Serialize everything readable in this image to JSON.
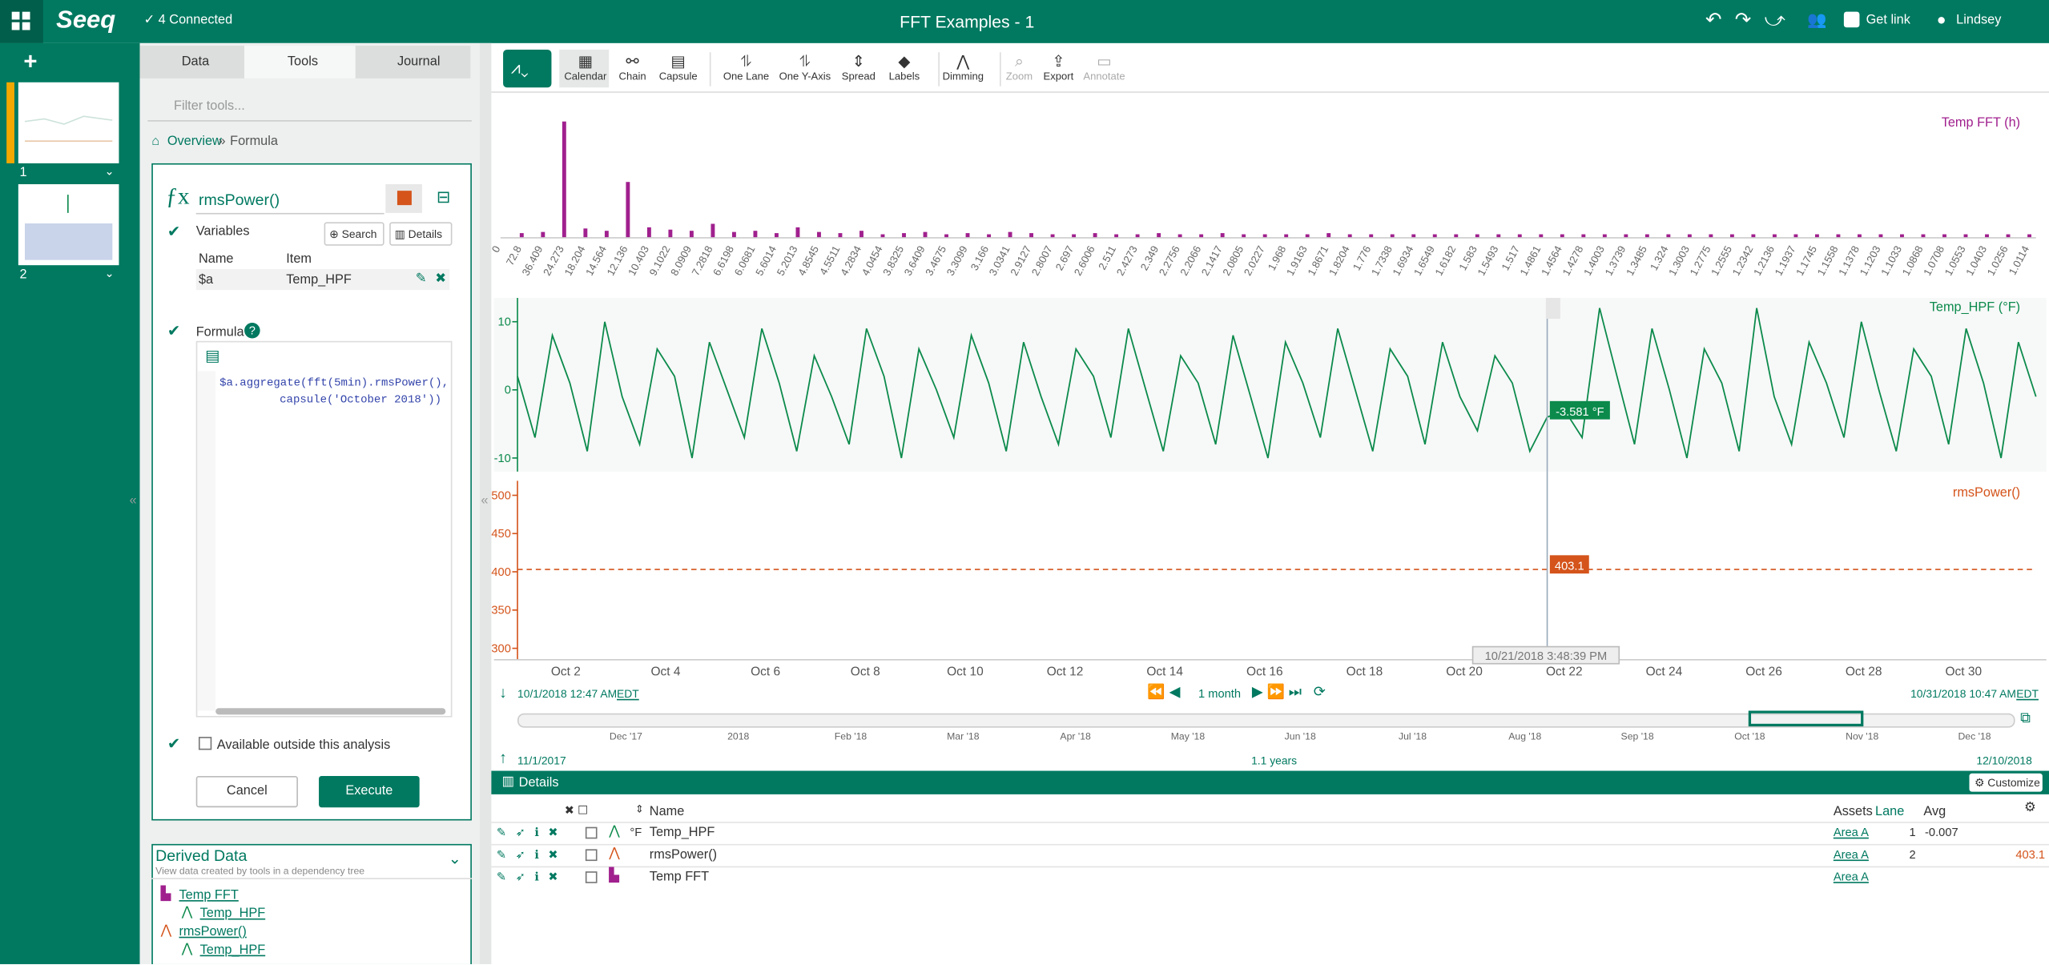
{
  "header": {
    "logo": "Seeq",
    "connected": "4 Connected",
    "title": "FFT Examples - 1",
    "get_link": "Get link",
    "user": "Lindsey"
  },
  "worksheets": [
    "1",
    "2"
  ],
  "tabs": [
    "Data",
    "Tools",
    "Journal"
  ],
  "tools": {
    "filter_placeholder": "Filter tools...",
    "breadcrumb": [
      "Overview",
      "Formula"
    ],
    "name": "rmsPower()",
    "variables_label": "Variables",
    "search": "Search",
    "details": "Details",
    "columns": [
      "Name",
      "Item"
    ],
    "variable": {
      "name": "$a",
      "item": "Temp_HPF"
    },
    "formula_label": "Formula",
    "formula_lines": [
      "$a.aggregate(fft(5min).rmsPower(),",
      "capsule('October 2018'))"
    ],
    "available": "Available outside this analysis",
    "cancel": "Cancel",
    "execute": "Execute"
  },
  "derived": {
    "title": "Derived Data",
    "subtitle": "View data created by tools in a dependency tree",
    "items": [
      {
        "name": "Temp FFT",
        "child": "Temp_HPF"
      },
      {
        "name": "rmsPower()",
        "child": "Temp_HPF"
      }
    ]
  },
  "toolbar": [
    "Calendar",
    "Chain",
    "Capsule",
    "One Lane",
    "One Y-Axis",
    "Spread",
    "Labels",
    "Dimming",
    "Zoom",
    "Export",
    "Annotate"
  ],
  "chart_data": [
    {
      "type": "bar",
      "title": "Temp FFT (h)",
      "color": "#a0208e",
      "ylim": [
        0,
        100
      ],
      "categories": [
        "0",
        "72.8",
        "36.409",
        "24.273",
        "18.204",
        "14.564",
        "12.136",
        "10.403",
        "9.1022",
        "8.0909",
        "7.2818",
        "6.6198",
        "6.0681",
        "5.6014",
        "5.2013",
        "4.8545",
        "4.5511",
        "4.2834",
        "4.0454",
        "3.8325",
        "3.6409",
        "3.4675",
        "3.3099",
        "3.166",
        "3.0341",
        "2.9127",
        "2.8007",
        "2.697",
        "2.6006",
        "2.511",
        "2.4273",
        "2.349",
        "2.2756",
        "2.2066",
        "2.1417",
        "2.0805",
        "2.0227",
        "1.968",
        "1.9163",
        "1.8671",
        "1.8204",
        "1.776",
        "1.7338",
        "1.6934",
        "1.6549",
        "1.6182",
        "1.583",
        "1.5493",
        "1.517",
        "1.4861",
        "1.4564",
        "1.4278",
        "1.4003",
        "1.3739",
        "1.3485",
        "1.324",
        "1.3003",
        "1.2775",
        "1.2555",
        "1.2342",
        "1.2136",
        "1.1937",
        "1.1745",
        "1.1558",
        "1.1378",
        "1.1203",
        "1.1033",
        "1.0868",
        "1.0708",
        "1.0553",
        "1.0403",
        "1.0256",
        "1.0114"
      ],
      "values": [
        0,
        4,
        5,
        100,
        8,
        6,
        48,
        9,
        7,
        6,
        12,
        5,
        6,
        4,
        9,
        5,
        4,
        6,
        3,
        4,
        5,
        3,
        4,
        3,
        5,
        4,
        3,
        3,
        4,
        3,
        3,
        4,
        3,
        3,
        4,
        3,
        3,
        3,
        3,
        4,
        3,
        3,
        3,
        3,
        3,
        3,
        3,
        3,
        3,
        3,
        3,
        3,
        3,
        3,
        3,
        3,
        3,
        3,
        3,
        3,
        3,
        3,
        3,
        3,
        3,
        3,
        3,
        3,
        3,
        3,
        3,
        3,
        3
      ]
    },
    {
      "type": "line",
      "title": "Temp_HPF (°F)",
      "color": "#0b8a4b",
      "ylim": [
        -12,
        13.5
      ],
      "yticks": [
        -10,
        0,
        10
      ],
      "values": [
        2,
        -7,
        8,
        1,
        -9,
        10,
        -1,
        -8,
        6,
        2,
        -10,
        7,
        0,
        -7,
        9,
        1,
        -9,
        5,
        -1,
        -8,
        9,
        2,
        -10,
        6,
        0,
        -7,
        8,
        1,
        -9,
        7,
        -1,
        -8,
        6,
        2,
        -7,
        9,
        0,
        -9,
        5,
        1,
        -8,
        8,
        -1,
        -10,
        7,
        1,
        -7,
        9,
        0,
        -9,
        6,
        2,
        -8,
        7,
        -1,
        -6,
        5,
        1,
        -9,
        -4,
        -3,
        -7,
        12,
        2,
        -8,
        9,
        0,
        -10,
        6,
        1,
        -9,
        12,
        -1,
        -8,
        7,
        1,
        -7,
        10,
        0,
        -9,
        6,
        2,
        -8,
        9,
        1,
        -10,
        7,
        -1
      ]
    },
    {
      "type": "line",
      "title": "rmsPower()",
      "color": "#d4541b",
      "ylim": [
        285,
        519
      ],
      "yticks": [
        300,
        350,
        400,
        450,
        500
      ],
      "dashed": true,
      "values": [
        403.1,
        403.1
      ]
    }
  ],
  "time": {
    "x_ticks": [
      "Oct 2",
      "Oct 4",
      "Oct 6",
      "Oct 8",
      "Oct 10",
      "Oct 12",
      "Oct 14",
      "Oct 16",
      "Oct 18",
      "Oct 20",
      "Oct 22",
      "Oct 24",
      "Oct 26",
      "Oct 28",
      "Oct 30"
    ],
    "cursor": "10/21/2018 3:48:39 PM",
    "cursor_readouts": [
      "-3.581 °F",
      "403.1"
    ],
    "start": "10/1/2018 12:47 AM",
    "end": "10/31/2018 10:47 AM",
    "tz": "EDT",
    "duration": "1 month",
    "nav_ticks": [
      "Dec '17",
      "2018",
      "Feb '18",
      "Mar '18",
      "Apr '18",
      "May '18",
      "Jun '18",
      "Jul '18",
      "Aug '18",
      "Sep '18",
      "Oct '18",
      "Nov '18",
      "Dec '18"
    ],
    "nav_start": "11/1/2017",
    "nav_duration": "1.1 years",
    "nav_end": "12/10/2018"
  },
  "details": {
    "title": "Details",
    "customize": "Customize",
    "columns": [
      "Name",
      "Assets",
      "Lane",
      "Avg"
    ],
    "rows": [
      {
        "unit": "°F",
        "name": "Temp_HPF",
        "asset": "Area A",
        "lane": 1,
        "avg": -0.007
      },
      {
        "name": "rmsPower()",
        "asset": "Area A",
        "lane": 2,
        "avg": 403.1
      },
      {
        "name": "Temp FFT",
        "asset": "Area A"
      }
    ]
  }
}
